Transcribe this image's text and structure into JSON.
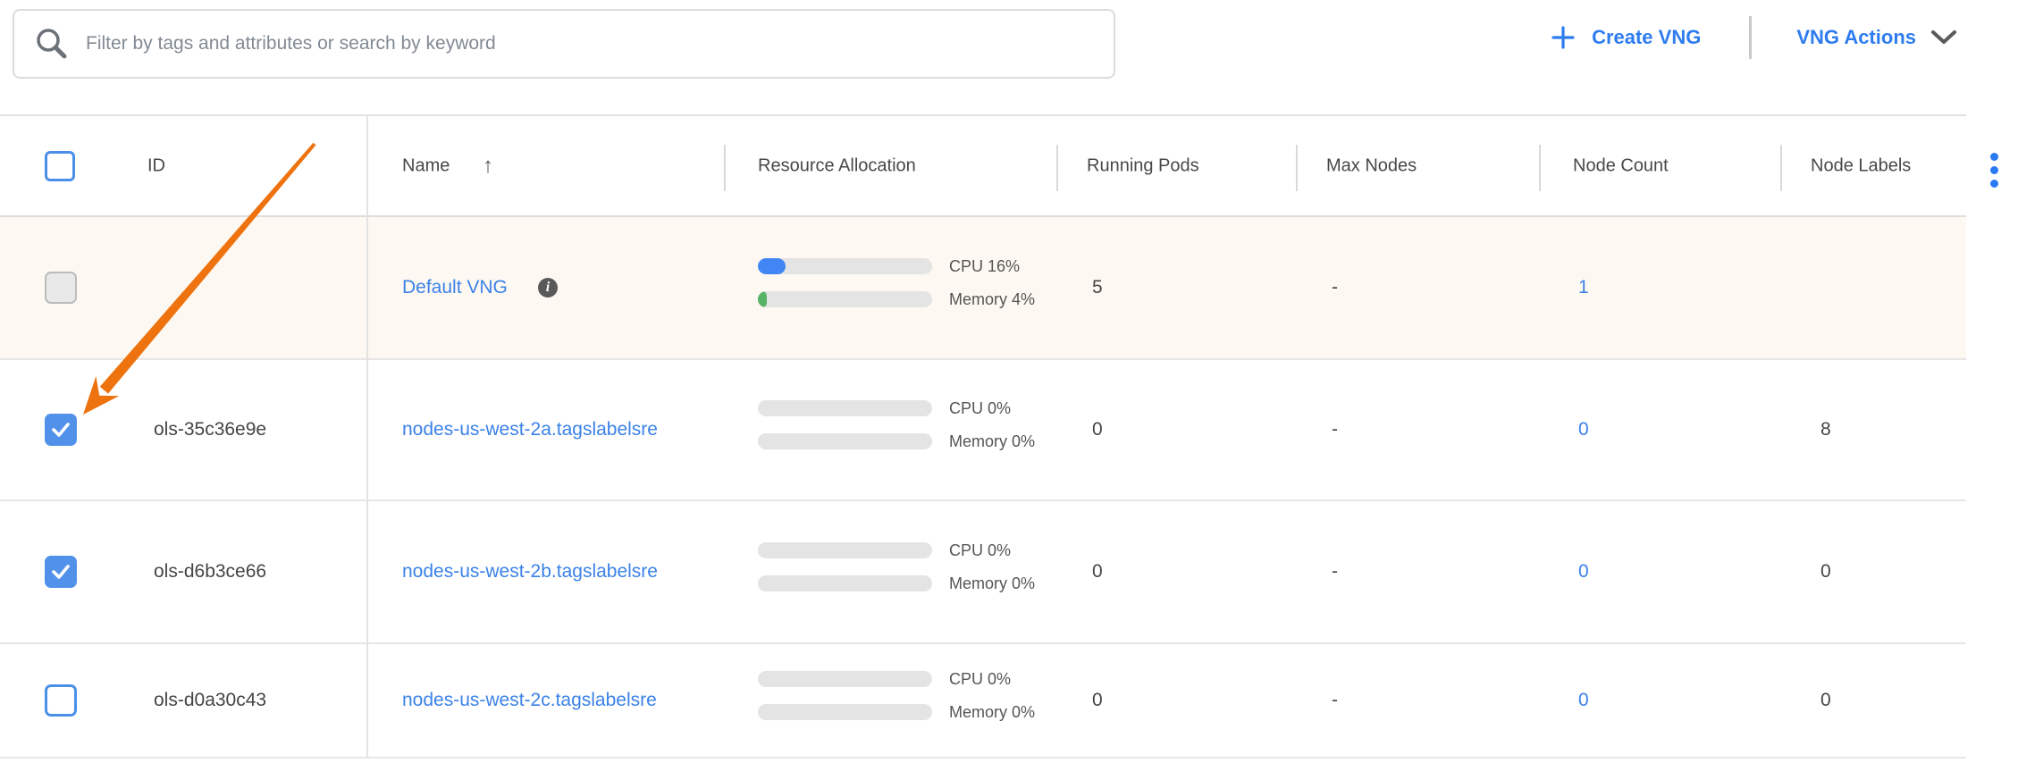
{
  "search": {
    "placeholder": "Filter by tags and attributes or search by keyword"
  },
  "toolbar": {
    "create_vng": "Create VNG",
    "vng_actions": "VNG Actions"
  },
  "icons": {
    "sort_ascending": "↑"
  },
  "table": {
    "headers": {
      "id": "ID",
      "name": "Name",
      "resource_allocation": "Resource Allocation",
      "running_pods": "Running Pods",
      "max_nodes": "Max Nodes",
      "node_count": "Node Count",
      "node_labels": "Node Labels"
    },
    "sort": {
      "column": "Name",
      "direction": "ascending"
    },
    "rows": [
      {
        "id": "",
        "name": "Default VNG",
        "info": true,
        "cpu": {
          "label": "CPU 16%",
          "pct": 16
        },
        "memory": {
          "label": "Memory 4%",
          "pct": 4
        },
        "running_pods": "5",
        "max_nodes": "-",
        "node_count": "1",
        "node_labels": "",
        "checkbox": "disabled",
        "highlighted": true
      },
      {
        "id": "ols-35c36e9e",
        "name": "nodes-us-west-2a.tagslabelsre",
        "info": false,
        "cpu": {
          "label": "CPU 0%",
          "pct": 0
        },
        "memory": {
          "label": "Memory 0%",
          "pct": 0
        },
        "running_pods": "0",
        "max_nodes": "-",
        "node_count": "0",
        "node_labels": "8",
        "checkbox": "checked",
        "highlighted": false
      },
      {
        "id": "ols-d6b3ce66",
        "name": "nodes-us-west-2b.tagslabelsre",
        "info": false,
        "cpu": {
          "label": "CPU 0%",
          "pct": 0
        },
        "memory": {
          "label": "Memory 0%",
          "pct": 0
        },
        "running_pods": "0",
        "max_nodes": "-",
        "node_count": "0",
        "node_labels": "0",
        "checkbox": "checked",
        "highlighted": false
      },
      {
        "id": "ols-d0a30c43",
        "name": "nodes-us-west-2c.tagslabelsre",
        "info": false,
        "cpu": {
          "label": "CPU 0%",
          "pct": 0
        },
        "memory": {
          "label": "Memory 0%",
          "pct": 0
        },
        "running_pods": "0",
        "max_nodes": "-",
        "node_count": "0",
        "node_labels": "0",
        "checkbox": "unchecked",
        "highlighted": false
      }
    ]
  },
  "colors": {
    "accent_blue": "#2e7cf0",
    "link_blue": "#3b82e8",
    "checkbox_blue": "#5191ea",
    "cpu_bar_fill": "#4285f4",
    "memory_bar_fill": "#57b365",
    "bar_track": "#e4e4e4",
    "row_highlight": "#fdf8f1",
    "annotation_arrow": "#ee720d",
    "menu_dots": "#2979f2"
  }
}
